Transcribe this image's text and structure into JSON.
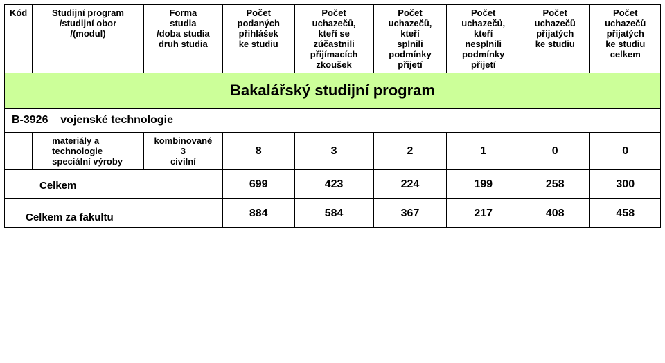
{
  "headers": {
    "kod": "Kód",
    "program": "Studijní program\n/studijní obor\n/(modul)",
    "forma": "Forma\nstudia\n/doba studia\ndruh studia",
    "c1": "Počet\npodaných\npřihlášek\nke studiu",
    "c2": "Počet\nuchazečů,\nkteří se\nzúčastnili\npřijímacích\nzkoušek",
    "c3": "Počet\nuchazečů,\nkteří\nsplnili\npodmínky\npřijetí",
    "c4": "Počet\nuchazečů,\nkteří\nnesplnili\npodmínky\npřijetí",
    "c5": "Počet\nuchazečů\npřijatých\nke studiu",
    "c6": "Počet\nuchazečů\npřijatých\nke studiu\ncelkem"
  },
  "section_title": "Bakalářský studijní program",
  "section_bg": "#ccff99",
  "group_code": "B-3926",
  "group_name": "vojenské technologie",
  "row": {
    "label": "materiály a\ntechnologie\nspeciální výroby",
    "form": "kombinované\n3\ncivilní",
    "v1": "8",
    "v2": "3",
    "v3": "2",
    "v4": "1",
    "v5": "0",
    "v6": "0"
  },
  "total": {
    "label": "Celkem",
    "v1": "699",
    "v2": "423",
    "v3": "224",
    "v4": "199",
    "v5": "258",
    "v6": "300"
  },
  "faculty_total": {
    "label": "Celkem za fakultu",
    "v1": "884",
    "v2": "584",
    "v3": "367",
    "v4": "217",
    "v5": "408",
    "v6": "458"
  }
}
